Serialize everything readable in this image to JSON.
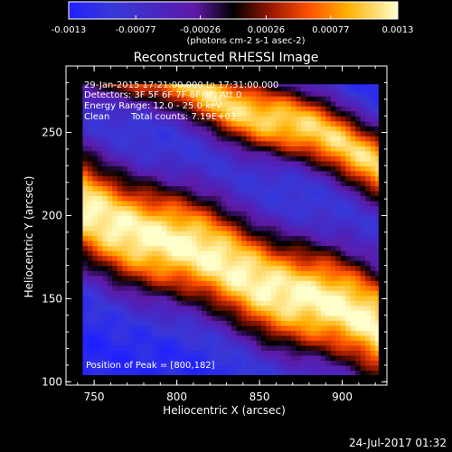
{
  "chart_data": {
    "type": "heatmap",
    "title": "Reconstructed RHESSI Image",
    "xlabel": "Heliocentric X (arcsec)",
    "ylabel": "Heliocentric Y (arcsec)",
    "xlim": [
      733,
      927
    ],
    "ylim": [
      98,
      290
    ],
    "xticks": [
      750,
      800,
      850,
      900
    ],
    "yticks": [
      100,
      150,
      200,
      250
    ],
    "plot_xlim": [
      743,
      922
    ],
    "plot_ylim": [
      104,
      279
    ],
    "colorbar": {
      "ticks": [
        "-0.0013",
        "-0.00077",
        "-0.00026",
        "0.00026",
        "0.00077",
        "0.0013"
      ],
      "tick_values": [
        -0.0013,
        -0.00077,
        -0.00026,
        0.00026,
        0.00077,
        0.0013
      ],
      "range": [
        -0.0013,
        0.0013
      ],
      "unit": "(photons cm-2 s-1 asec-2)",
      "stops": [
        {
          "v": -0.0013,
          "color": "#2020ff"
        },
        {
          "v": -0.00095,
          "color": "#3838d8"
        },
        {
          "v": -0.0006,
          "color": "#4a26c0"
        },
        {
          "v": -0.0003,
          "color": "#5e1aa6"
        },
        {
          "v": 0.0,
          "color": "#000000"
        },
        {
          "v": 0.0003,
          "color": "#9a1800"
        },
        {
          "v": 0.0006,
          "color": "#ff5000"
        },
        {
          "v": 0.0009,
          "color": "#ffb000"
        },
        {
          "v": 0.0013,
          "color": "#ffffcc"
        }
      ]
    },
    "structure": {
      "band_slope": -0.4,
      "bands": [
        {
          "intercept_y": 182,
          "at_x": 800,
          "width": 36,
          "amplitude": 0.0013
        },
        {
          "intercept_y": 262,
          "at_x": 850,
          "width": 24,
          "amplitude": 0.0011
        },
        {
          "intercept_y": 150,
          "at_x": 800,
          "width": 16,
          "amplitude": -0.0011
        },
        {
          "intercept_y": 225,
          "at_x": 800,
          "width": 18,
          "amplitude": -0.0011
        },
        {
          "intercept_y": 118,
          "at_x": 800,
          "width": 20,
          "amplitude": -0.0013
        }
      ],
      "peak": [
        800,
        182
      ]
    },
    "annotations": {
      "time_range": "29-Jan-2015 17:21:00.000 to 17:31:00.000",
      "detectors": "Detectors: 3F 5F 6F 7F 8F 9F, Att 0",
      "energy_range": "Energy Range: 12.0 - 25.0 keV",
      "clean": "Clean",
      "total_counts": "Total counts: 7.19E+03",
      "peak_position": "Position of Peak = [800,182]"
    },
    "timestamp": "24-Jul-2017 01:32"
  }
}
